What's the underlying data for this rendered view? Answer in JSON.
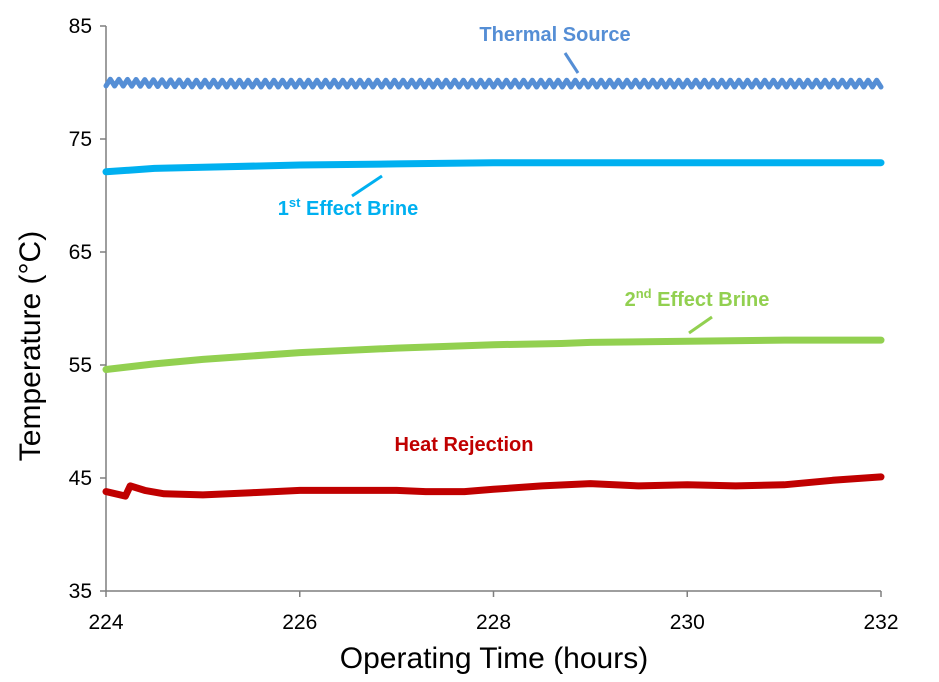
{
  "chart_data": {
    "type": "line",
    "title": "",
    "xlabel": "Operating Time (hours)",
    "ylabel": "Temperature (°C)",
    "xlim": [
      224,
      232
    ],
    "ylim": [
      35,
      85
    ],
    "xticks": [
      224,
      226,
      228,
      230,
      232
    ],
    "yticks": [
      35,
      45,
      55,
      65,
      75,
      85
    ],
    "grid": false,
    "series": [
      {
        "name": "Thermal Source",
        "label_parts": {
          "pre": "Thermal Source",
          "sup": "",
          "post": ""
        },
        "color": "#558ED5",
        "noise_amp": 0.3,
        "x": [
          224,
          225,
          226,
          227,
          228,
          229,
          230,
          231,
          232
        ],
        "y": [
          80.0,
          79.9,
          79.9,
          79.9,
          79.9,
          79.9,
          79.9,
          79.9,
          79.9
        ]
      },
      {
        "name": "1st Effect Brine",
        "label_parts": {
          "pre": "1",
          "sup": "st",
          "post": " Effect Brine"
        },
        "color": "#00B0F0",
        "noise_amp": 0,
        "x": [
          224,
          224.5,
          225,
          226,
          227,
          228,
          229,
          230,
          231,
          232
        ],
        "y": [
          72.1,
          72.4,
          72.5,
          72.7,
          72.8,
          72.9,
          72.9,
          72.9,
          72.9,
          72.9
        ]
      },
      {
        "name": "2nd Effect Brine",
        "label_parts": {
          "pre": "2",
          "sup": "nd",
          "post": " Effect Brine"
        },
        "color": "#92D050",
        "noise_amp": 0,
        "x": [
          224,
          224.5,
          225,
          225.5,
          226,
          227,
          228,
          228.7,
          229,
          230,
          231,
          232
        ],
        "y": [
          54.6,
          55.1,
          55.5,
          55.8,
          56.1,
          56.5,
          56.8,
          56.9,
          57.0,
          57.1,
          57.2,
          57.2
        ]
      },
      {
        "name": "Heat Rejection",
        "label_parts": {
          "pre": "Heat Rejection",
          "sup": "",
          "post": ""
        },
        "color": "#C00000",
        "noise_amp": 0,
        "x": [
          224,
          224.15,
          224.2,
          224.25,
          224.4,
          224.6,
          225,
          225.5,
          226,
          226.5,
          227,
          227.3,
          227.7,
          228,
          228.5,
          229,
          229.5,
          230,
          230.5,
          231,
          231.5,
          232
        ],
        "y": [
          43.8,
          43.5,
          43.4,
          44.3,
          43.9,
          43.6,
          43.5,
          43.7,
          43.9,
          43.9,
          43.9,
          43.8,
          43.8,
          44.0,
          44.3,
          44.5,
          44.3,
          44.4,
          44.3,
          44.4,
          44.8,
          45.1
        ]
      }
    ]
  }
}
